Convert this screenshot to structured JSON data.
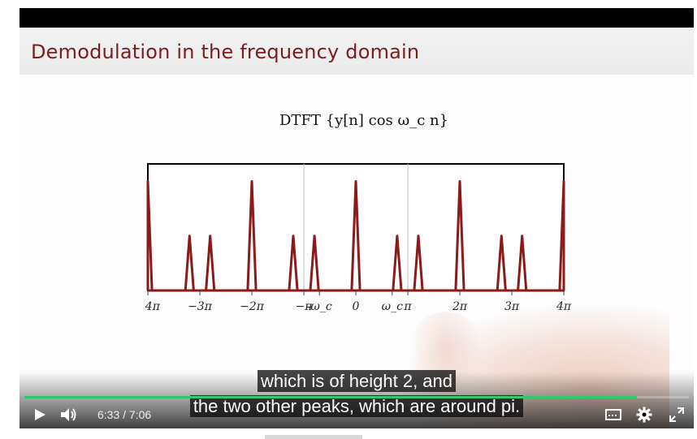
{
  "slide": {
    "title": "Demodulation in the frequency domain",
    "equation": "DTFT {y[n] cos ω_c n}"
  },
  "chart_data": {
    "type": "line",
    "xlabel": "",
    "ylabel": "",
    "xlim": [
      -12.566,
      12.566
    ],
    "ylim": [
      0,
      2.2
    ],
    "grid": false,
    "ticks": [
      {
        "label": "−4π",
        "x": -12.566
      },
      {
        "label": "−3π",
        "x": -9.425
      },
      {
        "label": "−2π",
        "x": -6.283
      },
      {
        "label": "−π",
        "x": -3.1416
      },
      {
        "label": "-ω_c",
        "x": -2.2
      },
      {
        "label": "0",
        "x": 0
      },
      {
        "label": "ω_c",
        "x": 2.2
      },
      {
        "label": "π",
        "x": 3.1416
      },
      {
        "label": "2π",
        "x": 6.283
      },
      {
        "label": "3π",
        "x": 9.425
      },
      {
        "label": "4π",
        "x": 12.566
      }
    ],
    "vlines": [
      -3.1416,
      3.1416
    ],
    "peaks": [
      {
        "center": -12.566,
        "height": 2,
        "halfwidth": 0.25
      },
      {
        "center": -10.05,
        "height": 1,
        "halfwidth": 0.25
      },
      {
        "center": -8.8,
        "height": 1,
        "halfwidth": 0.25
      },
      {
        "center": -6.283,
        "height": 2,
        "halfwidth": 0.25
      },
      {
        "center": -3.78,
        "height": 1,
        "halfwidth": 0.25
      },
      {
        "center": -2.5,
        "height": 1,
        "halfwidth": 0.25
      },
      {
        "center": 0,
        "height": 2,
        "halfwidth": 0.25
      },
      {
        "center": 2.5,
        "height": 1,
        "halfwidth": 0.25
      },
      {
        "center": 3.78,
        "height": 1,
        "halfwidth": 0.25
      },
      {
        "center": 6.283,
        "height": 2,
        "halfwidth": 0.25
      },
      {
        "center": 8.8,
        "height": 1,
        "halfwidth": 0.25
      },
      {
        "center": 10.05,
        "height": 1,
        "halfwidth": 0.25
      },
      {
        "center": 12.566,
        "height": 2,
        "halfwidth": 0.25
      }
    ],
    "line_color": "#8b1a1a"
  },
  "captions": {
    "line1": "which is of height 2, and",
    "line2": "the two other peaks, which are around pi."
  },
  "player": {
    "current_time": "6:33",
    "separator": "/",
    "duration": "7:06",
    "progress": 0.922,
    "accent": "#2ecc71",
    "icons": [
      "play-icon",
      "volume-icon",
      "subtitles-icon",
      "settings-icon",
      "fullscreen-icon"
    ]
  }
}
